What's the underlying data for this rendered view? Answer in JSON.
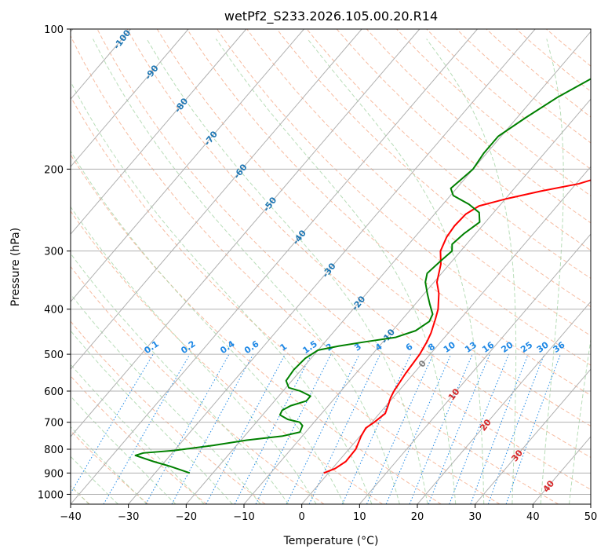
{
  "chart_data": {
    "type": "line",
    "title": "wetPf2_S233.2026.105.00.20.R14",
    "xlabel": "Temperature (°C)",
    "ylabel": "Pressure (hPa)",
    "xlim": [
      -40,
      50
    ],
    "ylim": [
      1050,
      100
    ],
    "y_scale": "log",
    "grid": true,
    "x_ticks": [
      -40,
      -30,
      -20,
      -10,
      0,
      10,
      20,
      30,
      40,
      50
    ],
    "y_ticks": [
      100,
      200,
      300,
      400,
      500,
      600,
      700,
      800,
      900,
      1000
    ],
    "colors": {
      "temperature": "#ff0000",
      "dewpoint": "#008000",
      "isotherm": "#b0b0b0",
      "dry_adiabat": "#f4a582",
      "moist_adiabat": "#a6d4a6",
      "mixing_ratio": "#1e88e5",
      "isotherm_label": "#1f77b4",
      "warm_isotherm_label": "#d62728",
      "zero_isotherm_label": "#808080"
    },
    "series": [
      {
        "name": "",
        "role": "temperature",
        "points": [
          [
            -0.8,
            900
          ],
          [
            0.5,
            880
          ],
          [
            1.3,
            850
          ],
          [
            1.2,
            800
          ],
          [
            0.2,
            750
          ],
          [
            -0.2,
            720
          ],
          [
            0.4,
            700
          ],
          [
            1.0,
            670
          ],
          [
            0.2,
            640
          ],
          [
            -0.4,
            620
          ],
          [
            -0.8,
            600
          ],
          [
            -1.4,
            550
          ],
          [
            -1.8,
            500
          ],
          [
            -2.4,
            470
          ],
          [
            -3.0,
            450
          ],
          [
            -4.3,
            420
          ],
          [
            -5.3,
            400
          ],
          [
            -7.5,
            370
          ],
          [
            -9.5,
            350
          ],
          [
            -11.5,
            320
          ],
          [
            -13.5,
            300
          ],
          [
            -14.5,
            280
          ],
          [
            -14.8,
            265
          ],
          [
            -14.6,
            250
          ],
          [
            -13.5,
            240
          ],
          [
            -10.0,
            232
          ],
          [
            -5.0,
            223
          ],
          [
            0.5,
            215
          ],
          [
            4.5,
            205
          ],
          [
            8.0,
            196
          ],
          [
            11.0,
            187
          ],
          [
            14.0,
            178
          ],
          [
            16.5,
            170
          ],
          [
            19.0,
            162
          ],
          [
            21.0,
            155
          ],
          [
            23.0,
            148
          ],
          [
            24.5,
            142
          ],
          [
            26.0,
            136
          ],
          [
            27.0,
            130
          ],
          [
            28.0,
            126
          ],
          [
            30.0,
            122
          ],
          [
            31.5,
            117
          ],
          [
            32.5,
            112
          ],
          [
            33.0,
            106
          ],
          [
            33.5,
            100
          ]
        ]
      },
      {
        "name": "",
        "role": "dewpoint",
        "points": [
          [
            -24.0,
            900
          ],
          [
            -28.5,
            870
          ],
          [
            -32.0,
            850
          ],
          [
            -36.0,
            825
          ],
          [
            -35.0,
            815
          ],
          [
            -30.0,
            805
          ],
          [
            -24.0,
            785
          ],
          [
            -19.0,
            765
          ],
          [
            -13.5,
            750
          ],
          [
            -11.0,
            735
          ],
          [
            -11.5,
            712
          ],
          [
            -12.5,
            700
          ],
          [
            -15.0,
            690
          ],
          [
            -17.0,
            675
          ],
          [
            -17.3,
            660
          ],
          [
            -16.5,
            645
          ],
          [
            -14.5,
            630
          ],
          [
            -14.5,
            615
          ],
          [
            -17.0,
            600
          ],
          [
            -19.5,
            590
          ],
          [
            -21.0,
            570
          ],
          [
            -21.3,
            540
          ],
          [
            -21.0,
            510
          ],
          [
            -20.0,
            490
          ],
          [
            -17.0,
            480
          ],
          [
            -13.0,
            470
          ],
          [
            -8.5,
            460
          ],
          [
            -6.0,
            445
          ],
          [
            -5.0,
            425
          ],
          [
            -5.5,
            410
          ],
          [
            -7.5,
            390
          ],
          [
            -9.5,
            370
          ],
          [
            -11.5,
            350
          ],
          [
            -12.5,
            335
          ],
          [
            -12.0,
            315
          ],
          [
            -11.5,
            300
          ],
          [
            -12.5,
            290
          ],
          [
            -12.0,
            275
          ],
          [
            -11.0,
            260
          ],
          [
            -12.5,
            248
          ],
          [
            -15.5,
            238
          ],
          [
            -19.5,
            228
          ],
          [
            -21.0,
            220
          ],
          [
            -20.5,
            210
          ],
          [
            -20.0,
            200
          ],
          [
            -20.5,
            185
          ],
          [
            -20.5,
            170
          ],
          [
            -18.5,
            155
          ],
          [
            -16.0,
            140
          ],
          [
            -13.0,
            128
          ],
          [
            -10.0,
            118
          ],
          [
            -7.0,
            110
          ],
          [
            -4.0,
            100
          ]
        ]
      }
    ],
    "isotherm_labels": [
      -100,
      -90,
      -80,
      -70,
      -60,
      -50,
      -40,
      -30,
      -20,
      -10,
      0,
      10,
      20,
      30,
      40
    ],
    "mixing_ratio_labels": [
      "0.1",
      "0.2",
      "0.4",
      "0.6",
      "1",
      "1.5",
      "2",
      "3",
      "4",
      "6",
      "8",
      "10",
      "13",
      "16",
      "20",
      "25",
      "30",
      "36"
    ],
    "mixing_ratio_values": [
      0.1,
      0.2,
      0.4,
      0.6,
      1,
      1.5,
      2,
      3,
      4,
      6,
      8,
      10,
      13,
      16,
      20,
      25,
      30,
      36
    ]
  }
}
